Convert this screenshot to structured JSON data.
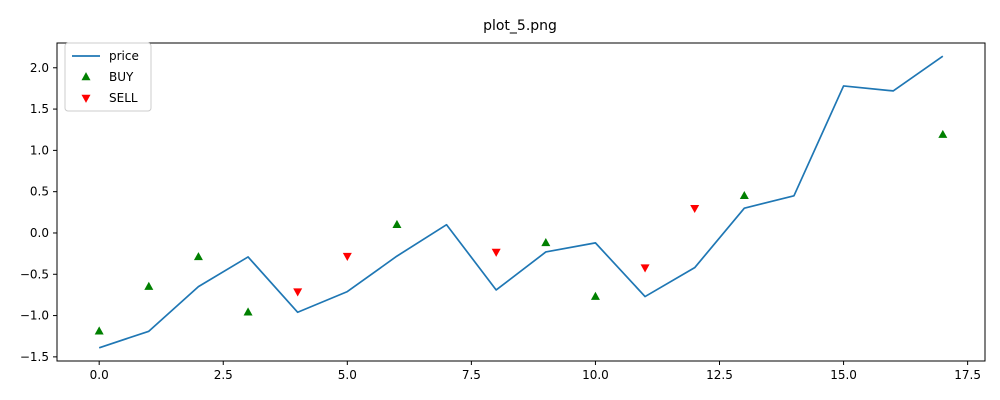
{
  "chart_data": {
    "type": "line",
    "title": "plot_5.png",
    "xlabel": "",
    "ylabel": "",
    "xlim": [
      -0.85,
      17.85
    ],
    "ylim": [
      -1.55,
      2.3
    ],
    "x_ticks": [
      0.0,
      2.5,
      5.0,
      7.5,
      10.0,
      12.5,
      15.0,
      17.5
    ],
    "x_tick_labels": [
      "0.0",
      "2.5",
      "5.0",
      "7.5",
      "10.0",
      "12.5",
      "15.0",
      "17.5"
    ],
    "y_ticks": [
      -1.5,
      -1.0,
      -0.5,
      0.0,
      0.5,
      1.0,
      1.5,
      2.0
    ],
    "y_tick_labels": [
      "−1.5",
      "−1.0",
      "−0.5",
      "0.0",
      "0.5",
      "1.0",
      "1.5",
      "2.0"
    ],
    "grid": false,
    "legend_position": "top-left",
    "series": [
      {
        "name": "price",
        "type": "line",
        "color": "#1f77b4",
        "x": [
          0,
          1,
          2,
          3,
          4,
          5,
          6,
          7,
          8,
          9,
          10,
          11,
          12,
          13,
          14,
          15,
          16,
          17
        ],
        "y": [
          -1.39,
          -1.19,
          -0.65,
          -0.29,
          -0.96,
          -0.71,
          -0.28,
          0.1,
          -0.69,
          -0.23,
          -0.12,
          -0.77,
          -0.42,
          0.3,
          0.45,
          1.78,
          1.72,
          2.14
        ]
      },
      {
        "name": "BUY",
        "type": "scatter",
        "marker": "triangle-up",
        "color": "#008000",
        "x": [
          0,
          1,
          2,
          3,
          6,
          9,
          10,
          13,
          17
        ],
        "y": [
          -1.19,
          -0.65,
          -0.29,
          -0.96,
          0.1,
          -0.12,
          -0.77,
          0.45,
          1.19
        ]
      },
      {
        "name": "SELL",
        "type": "scatter",
        "marker": "triangle-down",
        "color": "#ff0000",
        "x": [
          4,
          5,
          8,
          11,
          12
        ],
        "y": [
          -0.71,
          -0.28,
          -0.23,
          -0.42,
          0.3
        ]
      }
    ]
  }
}
